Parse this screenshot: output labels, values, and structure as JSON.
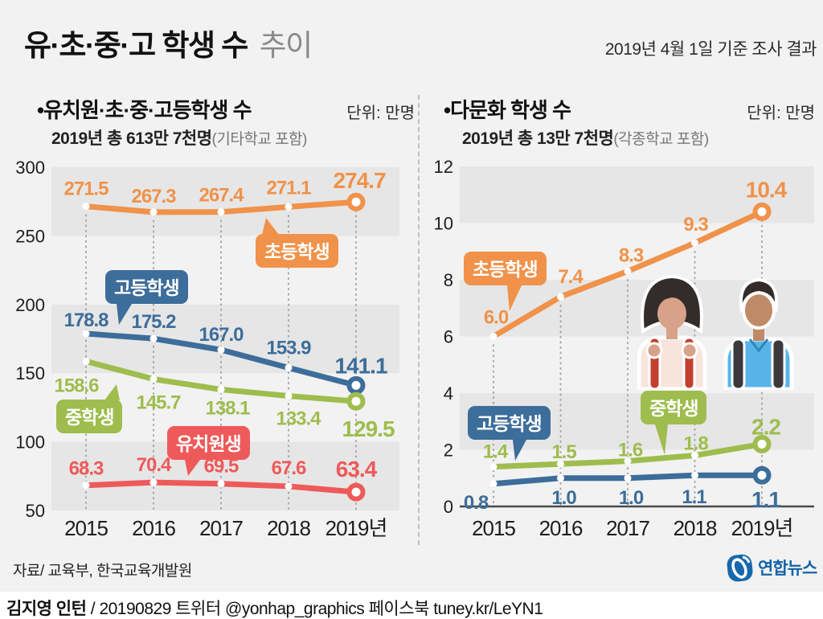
{
  "header": {
    "title_main": "유·초·중·고 학생 수",
    "title_sub": "추이",
    "date_note": "2019년 4월 1일 기준 조사 결과"
  },
  "panels": [
    {
      "bullet": "•",
      "title": "유치원·초·중·고등학생 수",
      "unit": "단위: 만명",
      "total_main": "2019년 총 613만 7천명",
      "total_paren": "(기타학교 포함)"
    },
    {
      "bullet": "•",
      "title": "다문화 학생 수",
      "unit": "단위: 만명",
      "total_main": "2019년 총 13만 7천명",
      "total_paren": "(각종학교 포함)"
    }
  ],
  "chart_data": [
    {
      "type": "line",
      "title": "유치원·초·중·고등학생 수",
      "unit": "만명",
      "categories": [
        "2015",
        "2016",
        "2017",
        "2018",
        "2019년"
      ],
      "ylim": [
        50,
        300
      ],
      "yticks": [
        300,
        250,
        200,
        150,
        100,
        50
      ],
      "grid": "alternating-bands",
      "series": [
        {
          "key": "elementary",
          "name": "초등학생",
          "color": "#f0924a",
          "values": [
            271.5,
            267.3,
            267.4,
            271.1,
            274.7
          ],
          "value_labels": [
            "271.5",
            "267.3",
            "267.4",
            "271.1",
            "274.7"
          ]
        },
        {
          "key": "high-school",
          "name": "고등학생",
          "color": "#3d6d9a",
          "values": [
            178.8,
            175.2,
            167.0,
            153.9,
            141.1
          ],
          "value_labels": [
            "178.8",
            "175.2",
            "167.0",
            "153.9",
            "141.1"
          ]
        },
        {
          "key": "middle-school",
          "name": "중학생",
          "color": "#9ebd4e",
          "values": [
            158.6,
            145.7,
            138.1,
            133.4,
            129.5
          ],
          "value_labels": [
            "158.6",
            "145.7",
            "138.1",
            "133.4",
            "129.5"
          ]
        },
        {
          "key": "kindergarten",
          "name": "유치원생",
          "color": "#ee5a5a",
          "values": [
            68.3,
            70.4,
            69.5,
            67.6,
            63.4
          ],
          "value_labels": [
            "68.3",
            "70.4",
            "69.5",
            "67.6",
            "63.4"
          ]
        }
      ]
    },
    {
      "type": "line",
      "title": "다문화 학생 수",
      "unit": "만명",
      "categories": [
        "2015",
        "2016",
        "2017",
        "2018",
        "2019년"
      ],
      "ylim": [
        0,
        12
      ],
      "yticks": [
        12,
        10,
        8,
        6,
        4,
        2,
        0
      ],
      "grid": "alternating-bands",
      "series": [
        {
          "key": "elementary",
          "name": "초등학생",
          "color": "#f0924a",
          "values": [
            6.0,
            7.4,
            8.3,
            9.3,
            10.4
          ],
          "value_labels": [
            "6.0",
            "7.4",
            "8.3",
            "9.3",
            "10.4"
          ]
        },
        {
          "key": "middle-school",
          "name": "중학생",
          "color": "#9ebd4e",
          "values": [
            1.4,
            1.5,
            1.6,
            1.8,
            2.2
          ],
          "value_labels": [
            "1.4",
            "1.5",
            "1.6",
            "1.8",
            "2.2"
          ]
        },
        {
          "key": "high-school",
          "name": "고등학생",
          "color": "#3d6d9a",
          "values": [
            0.8,
            1.0,
            1.0,
            1.1,
            1.1
          ],
          "value_labels": [
            "0.8",
            "1.0",
            "1.0",
            "1.1",
            "1.1"
          ]
        }
      ]
    }
  ],
  "footer": {
    "source": "자료/ 교육부, 한국교육개발원",
    "credit_author": "김지영 인턴",
    "credit_rest": " / 20190829 트위터 @yonhap_graphics  페이스북 tuney.kr/LeYN1",
    "logo_text": "연합뉴스"
  },
  "colors": {
    "elementary": "#f0924a",
    "high_school": "#3d6d9a",
    "middle_school": "#9ebd4e",
    "kindergarten": "#ee5a5a",
    "grid_band": "#e6e6e6",
    "background": "#f2f2f2",
    "logo_blue": "#1668ad"
  }
}
